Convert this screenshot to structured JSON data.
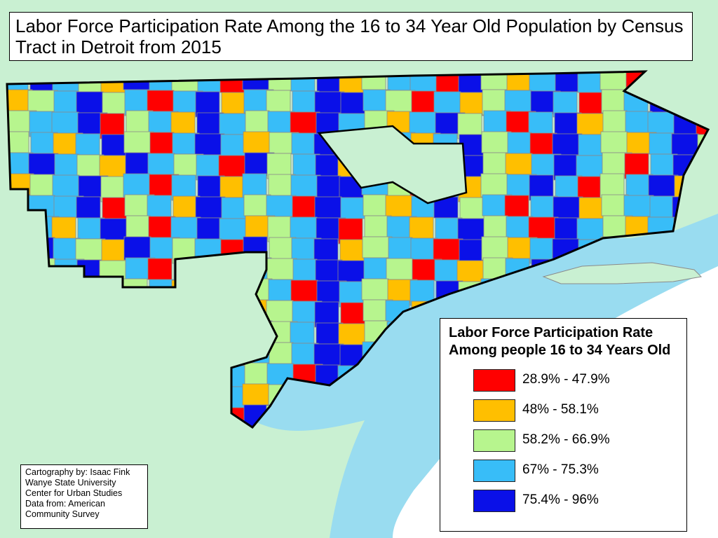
{
  "title": {
    "line1": "Labor Force Participation Rate Among the 16 to 34 Year Old Population by Census",
    "line2": "Tract in Detroit from 2015"
  },
  "legend": {
    "title_line1": "Labor Force Participation Rate",
    "title_line2": "Among people 16 to 34 Years Old",
    "classes": [
      {
        "label": "28.9% - 47.9%",
        "color": "#ff0000"
      },
      {
        "label": "48% - 58.1%",
        "color": "#ffbf00"
      },
      {
        "label": "58.2% - 66.9%",
        "color": "#b7f58e"
      },
      {
        "label": "67% - 75.3%",
        "color": "#38bdf8"
      },
      {
        "label": "75.4% - 96%",
        "color": "#0a10e8"
      }
    ]
  },
  "credits": {
    "lines": [
      "Cartography by: Isaac Fink",
      "Wanye State University",
      "Center for Urban Studies",
      "Data from: American",
      "Community Survey"
    ]
  },
  "colors": {
    "background_land": "#c9f0d2",
    "water": "#99dcf0",
    "canada_land": "#ffffff",
    "tract_border": "#8a8a8a",
    "city_border": "#000000"
  },
  "tract_classes": [
    3,
    4,
    3,
    2,
    1,
    4,
    3,
    2,
    3,
    0,
    4,
    2,
    3,
    4,
    1,
    2,
    3,
    3,
    0,
    4,
    2,
    1,
    3,
    4,
    3,
    2,
    0,
    3,
    4,
    3,
    1,
    2,
    3,
    4,
    2,
    3,
    0,
    3,
    4,
    1,
    3,
    2,
    3,
    4,
    4,
    3,
    2,
    0,
    3,
    1,
    2,
    3,
    4,
    3,
    0,
    2,
    3,
    4,
    1,
    3,
    2,
    3,
    3,
    4,
    0,
    2,
    3,
    1,
    4,
    3,
    2,
    3,
    0,
    4,
    3,
    2,
    1,
    3,
    4,
    2,
    3,
    0,
    3,
    4,
    1,
    2,
    3,
    3,
    4,
    0,
    2,
    3,
    1,
    3,
    4,
    2,
    0,
    3,
    4,
    3,
    1,
    2,
    3,
    4,
    0,
    2,
    3,
    1,
    3,
    4,
    2,
    3,
    0,
    4,
    3,
    2,
    1,
    3,
    4,
    2
  ]
}
